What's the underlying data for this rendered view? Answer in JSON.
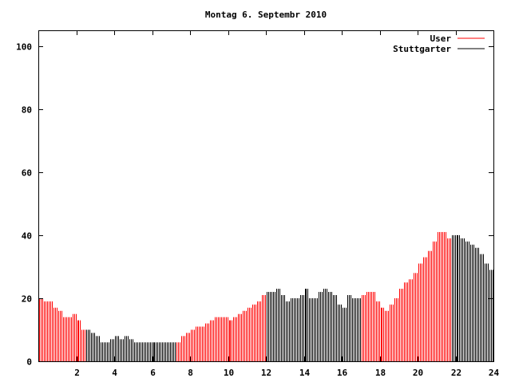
{
  "chart_data": {
    "type": "bar",
    "title": "Montag 6. Septembr 2010",
    "xlabel": "",
    "ylabel": "",
    "xlim": [
      0,
      24
    ],
    "ylim": [
      0,
      105
    ],
    "xticks": [
      2,
      4,
      6,
      8,
      10,
      12,
      14,
      16,
      18,
      20,
      22,
      24
    ],
    "yticks": [
      0,
      20,
      40,
      60,
      80,
      100
    ],
    "x_step_hours": 0.25,
    "legend_position": "top-right",
    "values": [
      20,
      19,
      19,
      17,
      16,
      14,
      14,
      15,
      13,
      10,
      10,
      9,
      8,
      6,
      6,
      7,
      8,
      7,
      8,
      7,
      6,
      6,
      6,
      6,
      6,
      6,
      6,
      6,
      6,
      6,
      8,
      9,
      10,
      11,
      11,
      12,
      13,
      14,
      14,
      14,
      13,
      14,
      15,
      16,
      17,
      18,
      19,
      21,
      22,
      22,
      23,
      21,
      19,
      20,
      20,
      21,
      23,
      20,
      20,
      22,
      23,
      22,
      21,
      18,
      17,
      21,
      20,
      20,
      21,
      22,
      22,
      19,
      17,
      16,
      18,
      20,
      23,
      25,
      26,
      28,
      31,
      33,
      35,
      38,
      41,
      41,
      39,
      40,
      40,
      39,
      38,
      37,
      36,
      34,
      31,
      29
    ],
    "series": [
      {
        "name": "User",
        "color": "#ff0000",
        "ranges": [
          [
            0,
            2.5
          ],
          [
            7.25,
            12
          ],
          [
            17,
            21.75
          ]
        ]
      },
      {
        "name": "Stuttgarter",
        "color": "#000000",
        "ranges": [
          [
            2.5,
            7.25
          ],
          [
            12,
            17
          ],
          [
            21.75,
            24
          ]
        ]
      }
    ]
  }
}
